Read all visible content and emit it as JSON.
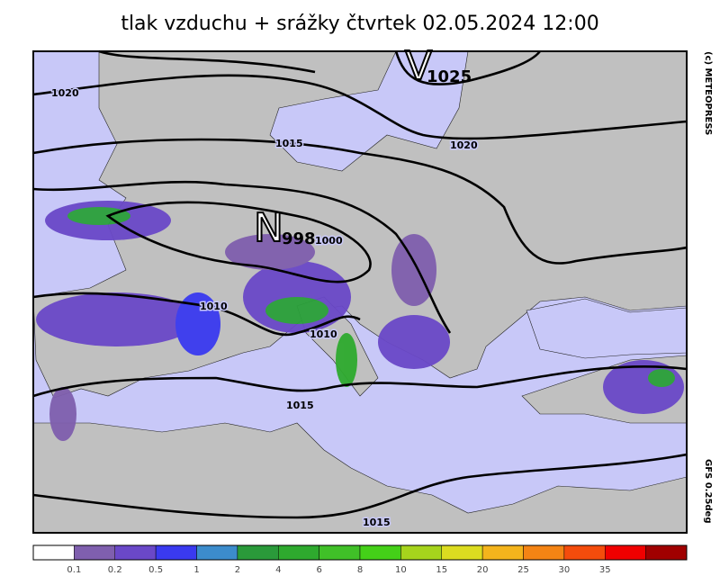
{
  "title": "tlak vzduchu + srážky čtvrtek 02.05.2024 12:00",
  "credit": "(c) METEOPRESS",
  "model": "GFS 0.25deg",
  "pressure_centers": [
    {
      "symbol": "V",
      "value": 1025
    },
    {
      "symbol": "N",
      "value": 998
    }
  ],
  "isobar_labels": [
    1020,
    1015,
    1020,
    1010,
    1010,
    1015,
    1015,
    1000
  ],
  "legend": {
    "colors": [
      "#ffffff",
      "#7f5fae",
      "#6a48c8",
      "#3a3af0",
      "#3c8ccc",
      "#2a9a3a",
      "#2eaa2e",
      "#40c028",
      "#44d018",
      "#a6d41c",
      "#dcdc20",
      "#f4b41c",
      "#f48414",
      "#f44c0c",
      "#f00000",
      "#a00000"
    ],
    "labels": [
      0.1,
      0.2,
      0.5,
      1,
      2,
      4,
      6,
      8,
      10,
      15,
      20,
      25,
      30,
      35
    ]
  }
}
